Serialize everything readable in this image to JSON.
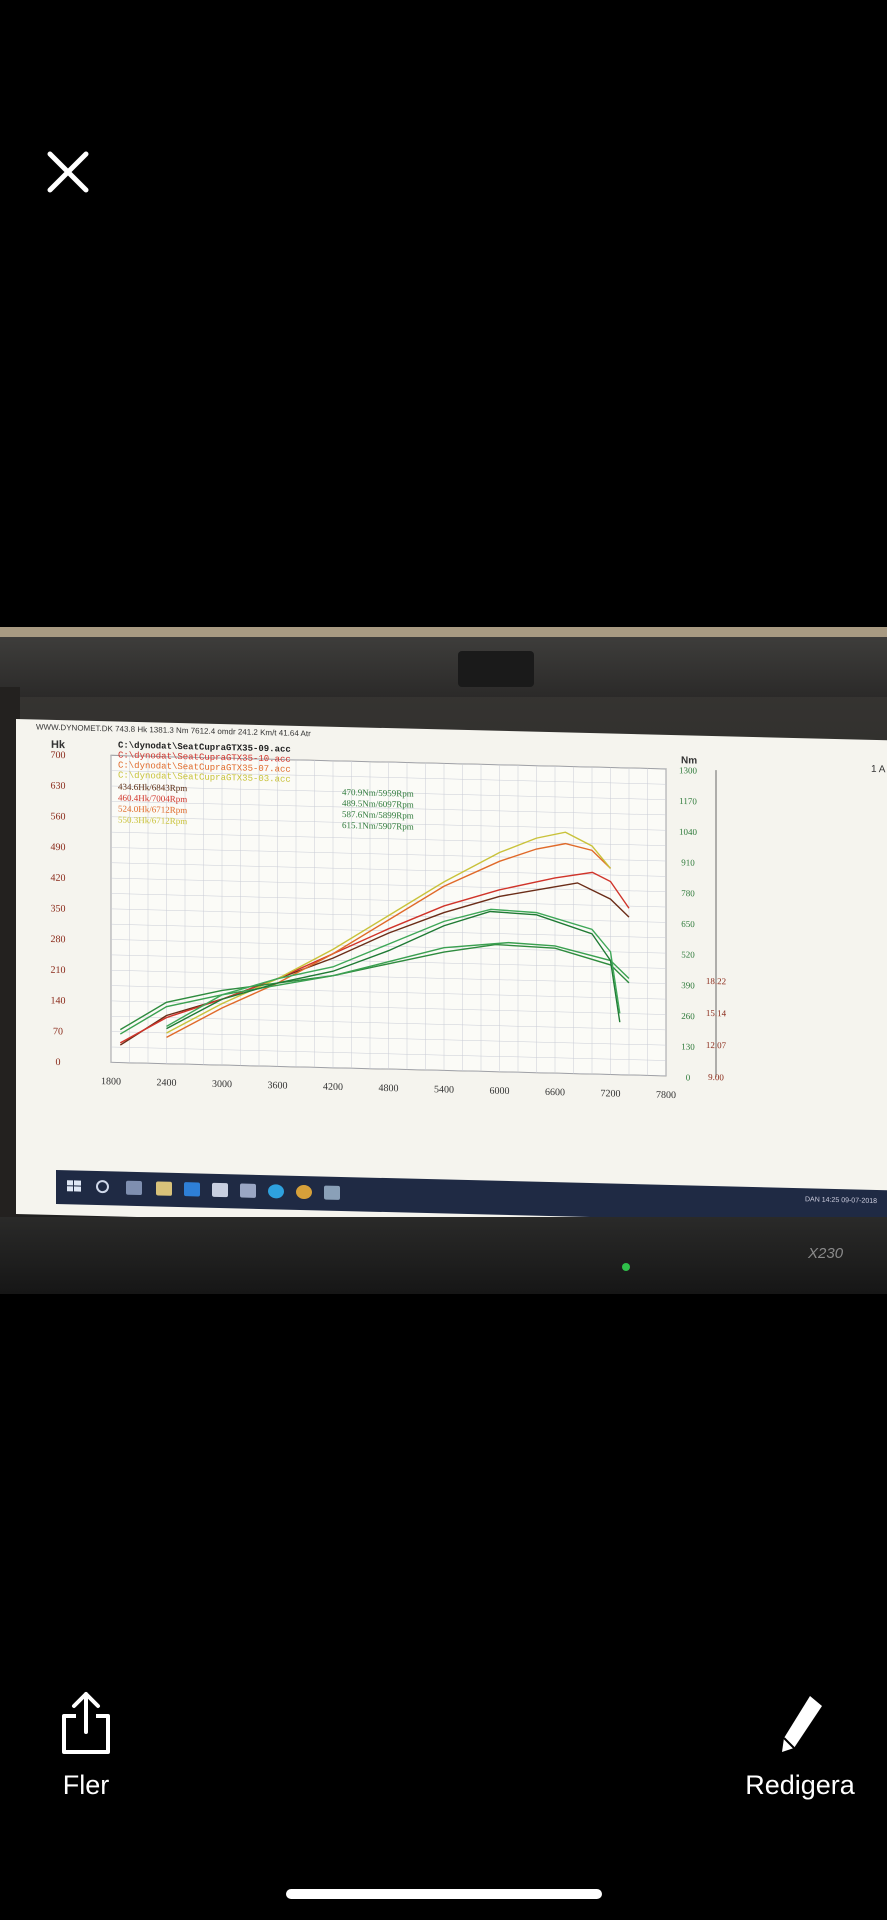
{
  "viewer": {
    "close_icon": "close-icon",
    "share_label": "Fler",
    "edit_label": "Redigera"
  },
  "screen": {
    "titlebar": "WWW.DYNOMET.DK  743.8 Hk 1381.3 Nm 7612.4 omdr 241.2 Km/t   41.64 Atr",
    "laptop_model": "X230",
    "tray_time": "14:25",
    "tray_date": "09-07-2018",
    "tray_lang": "DAN"
  },
  "chart_data": {
    "type": "line",
    "title": "",
    "xlabel": "",
    "ylabel_left": "Hk",
    "ylabel_right": "Nm",
    "right_corner": "1 A",
    "x_ticks": [
      1800,
      2400,
      3000,
      3600,
      4200,
      4800,
      5400,
      6000,
      6600,
      7200,
      7800
    ],
    "y_left_ticks": [
      0,
      70,
      140,
      210,
      280,
      350,
      420,
      490,
      560,
      630,
      700
    ],
    "y_right_ticks": [
      0,
      130,
      260,
      390,
      520,
      650,
      780,
      910,
      1040,
      1170,
      1300
    ],
    "y_right2_ticks": [
      "9.00",
      "12.07",
      "15.14",
      "18.22"
    ],
    "xlim": [
      1800,
      7800
    ],
    "ylim_left": [
      0,
      700
    ],
    "files": [
      {
        "name": "C:\\dynodat\\SeatCupraGTX35-09.acc",
        "color": "#5a2a10"
      },
      {
        "name": "C:\\dynodat\\SeatCupraGTX35-10.acc",
        "color": "#d0342a"
      },
      {
        "name": "C:\\dynodat\\SeatCupraGTX35-07.acc",
        "color": "#e06a2a"
      },
      {
        "name": "C:\\dynodat\\SeatCupraGTX35-03.acc",
        "color": "#c9c23a"
      }
    ],
    "power_peaks": [
      "434.6Hk/6843Rpm",
      "460.4Hk/7004Rpm",
      "524.0Hk/6712Rpm",
      "550.3Hk/6712Rpm"
    ],
    "torque_peaks": [
      "470.9Nm/5959Rpm",
      "489.5Nm/6097Rpm",
      "587.6Nm/5899Rpm",
      "615.1Nm/5907Rpm"
    ],
    "series": [
      {
        "x": [
          1900,
          2400,
          3000,
          3600,
          4200,
          4800,
          5400,
          6000,
          6600,
          6843,
          7200,
          7400
        ],
        "values": [
          40,
          110,
          150,
          200,
          250,
          310,
          360,
          400,
          425,
          435,
          400,
          360
        ],
        "color": "#6b2d18"
      },
      {
        "x": [
          1900,
          2400,
          3000,
          3600,
          4200,
          4800,
          5400,
          6000,
          6600,
          7004,
          7200,
          7400
        ],
        "values": [
          45,
          105,
          150,
          200,
          260,
          320,
          375,
          415,
          445,
          460,
          440,
          380
        ],
        "color": "#d0342a"
      },
      {
        "x": [
          2400,
          3000,
          3600,
          4200,
          4800,
          5400,
          6000,
          6400,
          6712,
          7000,
          7200
        ],
        "values": [
          60,
          130,
          190,
          260,
          340,
          420,
          480,
          510,
          524,
          510,
          470
        ],
        "color": "#e06a2a"
      },
      {
        "x": [
          2400,
          3000,
          3600,
          4200,
          4800,
          5400,
          6000,
          6400,
          6712,
          7000,
          7200
        ],
        "values": [
          70,
          140,
          200,
          270,
          350,
          430,
          500,
          535,
          550,
          520,
          470
        ],
        "color": "#c9c23a"
      },
      {
        "x": [
          1900,
          2400,
          3000,
          3600,
          4200,
          4800,
          5400,
          5959,
          6600,
          7200,
          7400
        ],
        "values": [
          75,
          140,
          170,
          190,
          210,
          240,
          270,
          290,
          285,
          250,
          210
        ],
        "color": "#2e8b3e"
      },
      {
        "x": [
          1900,
          2400,
          3000,
          3600,
          4200,
          4800,
          5400,
          6097,
          6600,
          7200,
          7400
        ],
        "values": [
          65,
          130,
          160,
          185,
          210,
          245,
          280,
          295,
          290,
          260,
          220
        ],
        "color": "#3aa050"
      },
      {
        "x": [
          2400,
          3000,
          3600,
          4200,
          4800,
          5400,
          5899,
          6400,
          7000,
          7200,
          7300
        ],
        "values": [
          80,
          150,
          190,
          220,
          270,
          330,
          365,
          360,
          320,
          260,
          120
        ],
        "color": "#1f7a34"
      },
      {
        "x": [
          2400,
          3000,
          3600,
          4200,
          4800,
          5400,
          5907,
          6400,
          7000,
          7200,
          7300
        ],
        "values": [
          85,
          160,
          200,
          230,
          285,
          340,
          370,
          365,
          330,
          280,
          140
        ],
        "color": "#3fa858"
      }
    ]
  }
}
